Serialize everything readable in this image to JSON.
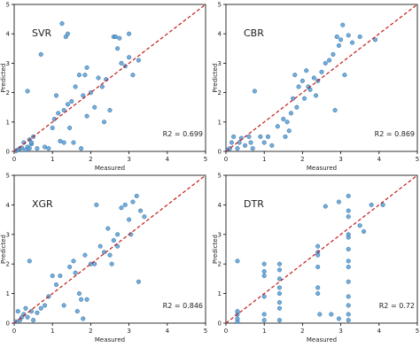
{
  "colors": {
    "point_fill": "#5b9fd6",
    "point_stroke": "#2e6d9e",
    "diagonal": "#c41a1a",
    "axis": "#000000"
  },
  "chart_data": [
    {
      "type": "scatter",
      "label": "SVR",
      "metric": "R2 = 0.699",
      "xlabel": "Measured",
      "ylabel": "Predicted",
      "xlim": [
        0,
        5
      ],
      "ylim": [
        0,
        5
      ],
      "xticks": [
        "0",
        "1",
        "2",
        "3",
        "4",
        "5"
      ],
      "yticks": [
        "0",
        "1",
        "2",
        "3",
        "4",
        "5"
      ],
      "reference_line": "y = x",
      "points": [
        [
          0.05,
          0.02
        ],
        [
          0.1,
          0.05
        ],
        [
          0.15,
          0.1
        ],
        [
          0.2,
          0.12
        ],
        [
          0.25,
          0.3
        ],
        [
          0.3,
          0.05
        ],
        [
          0.35,
          0.15
        ],
        [
          0.4,
          0.1
        ],
        [
          0.45,
          0.25
        ],
        [
          0.4,
          0.4
        ],
        [
          0.35,
          2.05
        ],
        [
          0.45,
          0.3
        ],
        [
          0.6,
          0.1
        ],
        [
          0.7,
          3.3
        ],
        [
          0.8,
          0.15
        ],
        [
          0.9,
          0.1
        ],
        [
          1.0,
          0.8
        ],
        [
          1.05,
          1.1
        ],
        [
          1.15,
          1.3
        ],
        [
          1.2,
          0.35
        ],
        [
          1.25,
          4.35
        ],
        [
          1.3,
          1.4
        ],
        [
          1.35,
          3.9
        ],
        [
          1.4,
          4.0
        ],
        [
          1.4,
          1.6
        ],
        [
          1.45,
          0.8
        ],
        [
          1.5,
          1.7
        ],
        [
          1.55,
          0.3
        ],
        [
          1.6,
          2.2
        ],
        [
          1.7,
          2.6
        ],
        [
          1.75,
          0.1
        ],
        [
          1.8,
          1.9
        ],
        [
          1.85,
          2.6
        ],
        [
          1.9,
          2.85
        ],
        [
          2.0,
          2.0
        ],
        [
          2.1,
          1.5
        ],
        [
          2.2,
          2.5
        ],
        [
          2.3,
          2.2
        ],
        [
          2.35,
          1.0
        ],
        [
          2.4,
          2.45
        ],
        [
          2.5,
          1.4
        ],
        [
          2.6,
          3.9
        ],
        [
          2.65,
          3.9
        ],
        [
          2.7,
          3.5
        ],
        [
          2.75,
          3.85
        ],
        [
          2.9,
          2.9
        ],
        [
          3.0,
          4.0
        ],
        [
          3.1,
          2.6
        ],
        [
          3.25,
          3.1
        ],
        [
          3.0,
          3.2
        ],
        [
          1.3,
          0.3
        ],
        [
          0.5,
          0.5
        ],
        [
          1.1,
          1.9
        ],
        [
          1.9,
          1.2
        ],
        [
          2.8,
          3.0
        ]
      ]
    },
    {
      "type": "scatter",
      "label": "CBR",
      "metric": "R2 = 0.869",
      "xlabel": "Measured",
      "ylabel": "Predicted",
      "xlim": [
        0,
        5
      ],
      "ylim": [
        0,
        5
      ],
      "xticks": [
        "0",
        "1",
        "2",
        "3",
        "4",
        "5"
      ],
      "yticks": [
        "0",
        "1",
        "2",
        "3",
        "4",
        "5"
      ],
      "reference_line": "y = x",
      "points": [
        [
          0.05,
          0.05
        ],
        [
          0.1,
          0.1
        ],
        [
          0.15,
          0.3
        ],
        [
          0.2,
          0.5
        ],
        [
          0.3,
          0.1
        ],
        [
          0.35,
          0.3
        ],
        [
          0.4,
          0.45
        ],
        [
          0.5,
          0.2
        ],
        [
          0.6,
          0.5
        ],
        [
          0.65,
          0.3
        ],
        [
          0.7,
          0.1
        ],
        [
          0.75,
          2.05
        ],
        [
          0.9,
          0.5
        ],
        [
          1.0,
          0.3
        ],
        [
          1.1,
          0.5
        ],
        [
          1.2,
          0.2
        ],
        [
          1.35,
          0.85
        ],
        [
          1.5,
          1.1
        ],
        [
          1.6,
          1.0
        ],
        [
          1.65,
          0.7
        ],
        [
          1.7,
          1.3
        ],
        [
          1.75,
          1.8
        ],
        [
          1.8,
          2.6
        ],
        [
          1.85,
          1.5
        ],
        [
          1.9,
          2.2
        ],
        [
          2.0,
          2.4
        ],
        [
          2.05,
          1.8
        ],
        [
          2.1,
          2.75
        ],
        [
          2.2,
          2.1
        ],
        [
          2.3,
          2.5
        ],
        [
          2.35,
          1.9
        ],
        [
          2.4,
          2.4
        ],
        [
          2.5,
          2.7
        ],
        [
          2.6,
          3.0
        ],
        [
          2.7,
          3.1
        ],
        [
          2.8,
          3.3
        ],
        [
          2.85,
          1.4
        ],
        [
          2.9,
          3.9
        ],
        [
          3.0,
          3.8
        ],
        [
          3.05,
          4.3
        ],
        [
          3.1,
          2.6
        ],
        [
          3.2,
          3.95
        ],
        [
          3.3,
          3.7
        ],
        [
          3.5,
          3.9
        ],
        [
          3.9,
          3.8
        ],
        [
          1.55,
          0.5
        ],
        [
          2.95,
          3.6
        ],
        [
          2.15,
          2.2
        ]
      ]
    },
    {
      "type": "scatter",
      "label": "XGR",
      "metric": "R2 = 0.846",
      "xlabel": "Measured",
      "ylabel": "Predicted",
      "xlim": [
        0,
        5
      ],
      "ylim": [
        0,
        5
      ],
      "xticks": [
        "0",
        "1",
        "2",
        "3",
        "4",
        "5"
      ],
      "yticks": [
        "0",
        "1",
        "2",
        "3",
        "4",
        "5"
      ],
      "reference_line": "y = x",
      "points": [
        [
          0.05,
          0.05
        ],
        [
          0.1,
          0.4
        ],
        [
          0.15,
          0.1
        ],
        [
          0.2,
          0.2
        ],
        [
          0.25,
          0.3
        ],
        [
          0.3,
          0.5
        ],
        [
          0.35,
          0.2
        ],
        [
          0.4,
          2.1
        ],
        [
          0.45,
          0.4
        ],
        [
          0.5,
          0.1
        ],
        [
          0.6,
          0.35
        ],
        [
          0.7,
          0.5
        ],
        [
          0.8,
          0.6
        ],
        [
          0.9,
          0.9
        ],
        [
          1.0,
          1.6
        ],
        [
          1.1,
          1.3
        ],
        [
          1.2,
          1.6
        ],
        [
          1.3,
          0.6
        ],
        [
          1.45,
          1.9
        ],
        [
          1.55,
          2.1
        ],
        [
          1.6,
          1.7
        ],
        [
          1.65,
          0.4
        ],
        [
          1.7,
          1.0
        ],
        [
          1.8,
          0.15
        ],
        [
          1.85,
          2.3
        ],
        [
          1.9,
          0.8
        ],
        [
          2.0,
          2.0
        ],
        [
          2.1,
          2.0
        ],
        [
          2.15,
          4.0
        ],
        [
          2.25,
          2.6
        ],
        [
          2.35,
          2.4
        ],
        [
          2.45,
          3.2
        ],
        [
          2.5,
          2.3
        ],
        [
          2.55,
          2.0
        ],
        [
          2.6,
          2.8
        ],
        [
          2.7,
          3.0
        ],
        [
          2.8,
          3.9
        ],
        [
          2.9,
          4.0
        ],
        [
          3.0,
          3.5
        ],
        [
          3.1,
          4.1
        ],
        [
          3.2,
          4.3
        ],
        [
          3.25,
          1.4
        ],
        [
          3.3,
          3.8
        ],
        [
          3.4,
          3.6
        ],
        [
          1.75,
          0.8
        ],
        [
          2.7,
          2.6
        ],
        [
          3.05,
          3.0
        ]
      ]
    },
    {
      "type": "scatter",
      "label": "DTR",
      "metric": "R2 = 0.72",
      "xlabel": "Measured",
      "ylabel": "Predicted",
      "xlim": [
        0,
        5
      ],
      "ylim": [
        0,
        5
      ],
      "xticks": [
        "0",
        "1",
        "2",
        "3",
        "4",
        "5"
      ],
      "yticks": [
        "0",
        "1",
        "2",
        "3",
        "4",
        "5"
      ],
      "reference_line": "y = x",
      "points": [
        [
          0.3,
          0.05
        ],
        [
          0.3,
          0.15
        ],
        [
          0.3,
          0.3
        ],
        [
          0.3,
          0.4
        ],
        [
          0.3,
          2.1
        ],
        [
          1.0,
          0.1
        ],
        [
          1.0,
          0.3
        ],
        [
          1.0,
          0.9
        ],
        [
          1.0,
          1.6
        ],
        [
          1.0,
          1.75
        ],
        [
          1.0,
          2.0
        ],
        [
          1.4,
          0.5
        ],
        [
          1.4,
          0.7
        ],
        [
          1.4,
          1.0
        ],
        [
          1.4,
          1.2
        ],
        [
          1.4,
          1.5
        ],
        [
          1.4,
          1.8
        ],
        [
          1.4,
          2.0
        ],
        [
          1.4,
          0.1
        ],
        [
          2.4,
          2.6
        ],
        [
          2.4,
          2.4
        ],
        [
          2.4,
          2.3
        ],
        [
          2.4,
          1.9
        ],
        [
          2.4,
          1.0
        ],
        [
          2.4,
          1.2
        ],
        [
          2.6,
          3.95
        ],
        [
          2.75,
          0.3
        ],
        [
          2.95,
          0.15
        ],
        [
          2.95,
          4.1
        ],
        [
          3.2,
          4.3
        ],
        [
          3.2,
          3.8
        ],
        [
          3.2,
          3.6
        ],
        [
          3.2,
          3.0
        ],
        [
          3.2,
          2.9
        ],
        [
          3.2,
          2.5
        ],
        [
          3.2,
          2.1
        ],
        [
          3.2,
          1.9
        ],
        [
          3.2,
          1.4
        ],
        [
          3.2,
          0.9
        ],
        [
          3.2,
          0.6
        ],
        [
          3.2,
          0.3
        ],
        [
          3.2,
          0.1
        ],
        [
          3.5,
          3.3
        ],
        [
          3.6,
          3.1
        ],
        [
          3.8,
          4.0
        ],
        [
          4.1,
          4.0
        ],
        [
          2.45,
          0.3
        ]
      ]
    }
  ]
}
